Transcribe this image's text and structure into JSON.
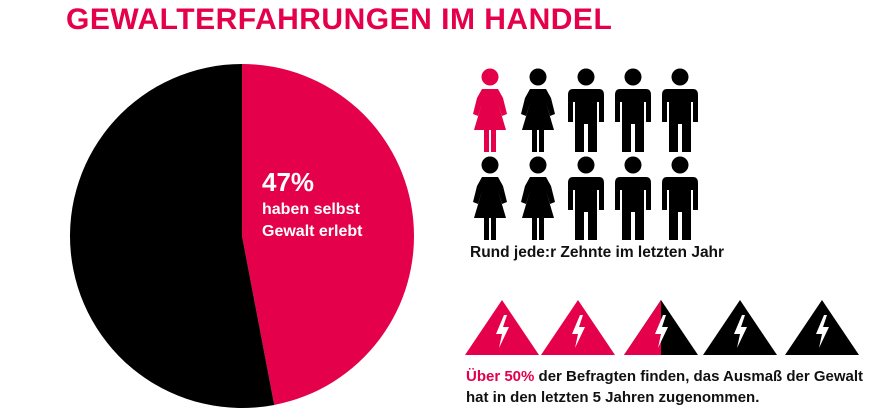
{
  "title": "GEWALTERFAHRUNGEN IM HANDEL",
  "colors": {
    "accent": "#e4004b",
    "dark": "#000000",
    "text": "#111111"
  },
  "chart_data": [
    {
      "type": "pie",
      "slices": [
        {
          "label": "haben selbst Gewalt erlebt",
          "value": 47,
          "color": "#e4004b"
        },
        {
          "label": "",
          "value": 53,
          "color": "#000000"
        }
      ],
      "label": {
        "percent": "47%",
        "text": "haben selbst Gewalt erlebt"
      }
    },
    {
      "type": "pictogram",
      "icon": "person-icon",
      "total": 10,
      "highlighted": 1,
      "caption": "Rund jede:r Zehnte im letzten Jahr"
    },
    {
      "type": "pictogram",
      "icon": "warning-icon",
      "total": 5,
      "highlighted": 2.5,
      "caption_highlight": "Über 50%",
      "caption_rest": " der Befragten finden, das Ausmaß der Gewalt hat in den letzten 5 Jahren zugenommen."
    }
  ]
}
